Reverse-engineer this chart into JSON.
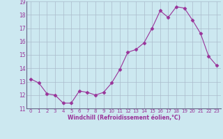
{
  "x": [
    0,
    1,
    2,
    3,
    4,
    5,
    6,
    7,
    8,
    9,
    10,
    11,
    12,
    13,
    14,
    15,
    16,
    17,
    18,
    19,
    20,
    21,
    22,
    23
  ],
  "y": [
    13.2,
    12.9,
    12.1,
    12.0,
    11.4,
    11.4,
    12.3,
    12.2,
    12.0,
    12.2,
    12.9,
    13.9,
    15.2,
    15.4,
    15.9,
    17.0,
    18.3,
    17.8,
    18.6,
    18.5,
    17.6,
    16.6,
    14.9,
    14.2
  ],
  "line_color": "#993399",
  "marker": "D",
  "marker_size": 2.5,
  "bg_color": "#cce8f0",
  "grid_color": "#aabbcc",
  "xlabel": "Windchill (Refroidissement éolien,°C)",
  "xlabel_color": "#993399",
  "tick_color": "#993399",
  "ylim": [
    11,
    19
  ],
  "yticks": [
    11,
    12,
    13,
    14,
    15,
    16,
    17,
    18,
    19
  ],
  "xticks": [
    0,
    1,
    2,
    3,
    4,
    5,
    6,
    7,
    8,
    9,
    10,
    11,
    12,
    13,
    14,
    15,
    16,
    17,
    18,
    19,
    20,
    21,
    22,
    23
  ]
}
